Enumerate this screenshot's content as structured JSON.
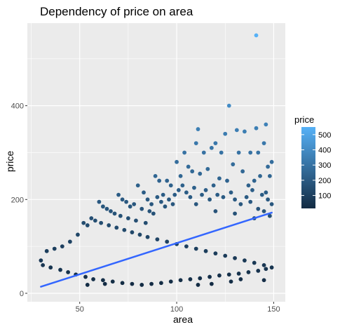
{
  "chart_data": {
    "type": "scatter",
    "title": "Dependency of price on area",
    "xlabel": "area",
    "ylabel": "price",
    "xlim": [
      23,
      156
    ],
    "ylim": [
      -18,
      576
    ],
    "x_ticks": [
      50,
      100,
      150
    ],
    "y_ticks": [
      0,
      200,
      400
    ],
    "x_tick_labels": [
      "50",
      "100",
      "150"
    ],
    "y_tick_labels": [
      "0",
      "200",
      "400"
    ],
    "grid": true,
    "legend": {
      "title": "price",
      "position": "right",
      "type": "colorbar",
      "range": [
        15,
        550
      ],
      "ticks": [
        100,
        200,
        300,
        400,
        500
      ],
      "tick_labels": [
        "100",
        "200",
        "300",
        "400",
        "500"
      ],
      "low_color": "#132b43",
      "high_color": "#56b1f7"
    },
    "trend_line": {
      "type": "linear",
      "color": "#3366ff",
      "points": [
        [
          30,
          14
        ],
        [
          149,
          172
        ]
      ]
    },
    "series": [
      {
        "points": [
          [
            141,
            550
          ],
          [
            127,
            400
          ],
          [
            111,
            350
          ],
          [
            131,
            348
          ],
          [
            141,
            352
          ],
          [
            146,
            360
          ],
          [
            125,
            340
          ],
          [
            135,
            345
          ],
          [
            120,
            320
          ],
          [
            110,
            320
          ],
          [
            132,
            300
          ],
          [
            138,
            300
          ],
          [
            142,
            300
          ],
          [
            145,
            320
          ],
          [
            148,
            250
          ],
          [
            147,
            270
          ],
          [
            149,
            280
          ],
          [
            143,
            250
          ],
          [
            114,
            300
          ],
          [
            118,
            310
          ],
          [
            123,
            300
          ],
          [
            100,
            280
          ],
          [
            102,
            250
          ],
          [
            104,
            300
          ],
          [
            106,
            270
          ],
          [
            108,
            260
          ],
          [
            112,
            255
          ],
          [
            116,
            265
          ],
          [
            119,
            230
          ],
          [
            122,
            245
          ],
          [
            126,
            240
          ],
          [
            129,
            275
          ],
          [
            134,
            260
          ],
          [
            137,
            230
          ],
          [
            139,
            220
          ],
          [
            140,
            240
          ],
          [
            144,
            210
          ],
          [
            146,
            215
          ],
          [
            149,
            190
          ],
          [
            147,
            200
          ],
          [
            89,
            250
          ],
          [
            91,
            240
          ],
          [
            93,
            210
          ],
          [
            95,
            240
          ],
          [
            97,
            230
          ],
          [
            99,
            210
          ],
          [
            101,
            220
          ],
          [
            103,
            230
          ],
          [
            105,
            215
          ],
          [
            107,
            205
          ],
          [
            109,
            225
          ],
          [
            113,
            210
          ],
          [
            115,
            220
          ],
          [
            117,
            200
          ],
          [
            121,
            210
          ],
          [
            124,
            205
          ],
          [
            128,
            215
          ],
          [
            130,
            200
          ],
          [
            133,
            190
          ],
          [
            136,
            205
          ],
          [
            138,
            195
          ],
          [
            142,
            180
          ],
          [
            145,
            175
          ],
          [
            148,
            165
          ],
          [
            80,
            230
          ],
          [
            83,
            215
          ],
          [
            85,
            200
          ],
          [
            87,
            190
          ],
          [
            90,
            205
          ],
          [
            92,
            195
          ],
          [
            94,
            185
          ],
          [
            96,
            200
          ],
          [
            98,
            190
          ],
          [
            110,
            190
          ],
          [
            120,
            175
          ],
          [
            130,
            170
          ],
          [
            140,
            160
          ],
          [
            70,
            210
          ],
          [
            72,
            200
          ],
          [
            74,
            195
          ],
          [
            76,
            185
          ],
          [
            78,
            190
          ],
          [
            82,
            180
          ],
          [
            86,
            175
          ],
          [
            88,
            170
          ],
          [
            60,
            195
          ],
          [
            62,
            185
          ],
          [
            64,
            180
          ],
          [
            66,
            175
          ],
          [
            68,
            170
          ],
          [
            71,
            165
          ],
          [
            75,
            160
          ],
          [
            79,
            155
          ],
          [
            84,
            150
          ],
          [
            52,
            150
          ],
          [
            54,
            145
          ],
          [
            56,
            160
          ],
          [
            58,
            155
          ],
          [
            61,
            150
          ],
          [
            65,
            145
          ],
          [
            69,
            140
          ],
          [
            73,
            135
          ],
          [
            77,
            130
          ],
          [
            81,
            125
          ],
          [
            85,
            120
          ],
          [
            90,
            115
          ],
          [
            95,
            110
          ],
          [
            100,
            105
          ],
          [
            105,
            100
          ],
          [
            110,
            95
          ],
          [
            115,
            90
          ],
          [
            120,
            85
          ],
          [
            125,
            80
          ],
          [
            130,
            75
          ],
          [
            135,
            70
          ],
          [
            140,
            65
          ],
          [
            145,
            60
          ],
          [
            49,
            125
          ],
          [
            45,
            110
          ],
          [
            41,
            100
          ],
          [
            37,
            95
          ],
          [
            33,
            90
          ],
          [
            30,
            70
          ],
          [
            31,
            60
          ],
          [
            35,
            55
          ],
          [
            40,
            50
          ],
          [
            44,
            45
          ],
          [
            48,
            40
          ],
          [
            53,
            35
          ],
          [
            57,
            30
          ],
          [
            62,
            28
          ],
          [
            67,
            25
          ],
          [
            72,
            22
          ],
          [
            77,
            20
          ],
          [
            82,
            18
          ],
          [
            87,
            20
          ],
          [
            92,
            22
          ],
          [
            97,
            25
          ],
          [
            102,
            28
          ],
          [
            107,
            30
          ],
          [
            112,
            32
          ],
          [
            117,
            35
          ],
          [
            122,
            38
          ],
          [
            127,
            40
          ],
          [
            132,
            42
          ],
          [
            137,
            45
          ],
          [
            142,
            48
          ],
          [
            146,
            52
          ],
          [
            149,
            55
          ],
          [
            118,
            20
          ],
          [
            111,
            18
          ],
          [
            145,
            28
          ],
          [
            128,
            25
          ],
          [
            133,
            30
          ],
          [
            54,
            18
          ],
          [
            63,
            20
          ]
        ]
      }
    ]
  }
}
